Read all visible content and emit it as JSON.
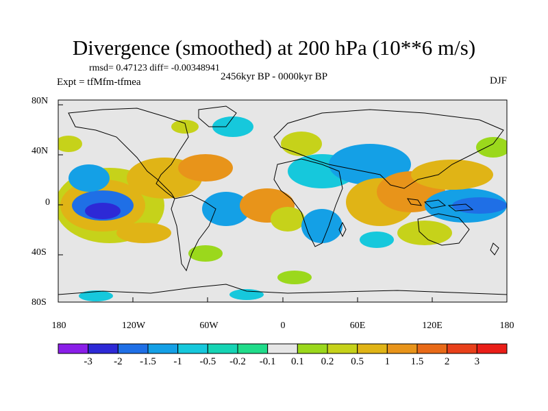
{
  "title": "Divergence (smoothed) at 200 hPa (10**6 m/s)",
  "stats": "rmsd= 0.47123 diff= -0.00348941",
  "period": "2456kyr BP - 0000kyr BP",
  "experiment": "Expt = tfMfm-tfmea",
  "season": "DJF",
  "lat_labels": [
    "80N",
    "40N",
    "0",
    "40S",
    "80S"
  ],
  "lon_labels": [
    "180",
    "120W",
    "60W",
    "0",
    "60E",
    "120E",
    "180"
  ],
  "colorbar": {
    "labels": [
      "-3",
      "-2",
      "-1.5",
      "-1",
      "-0.5",
      "-0.2",
      "-0.1",
      "0.1",
      "0.2",
      "0.5",
      "1",
      "1.5",
      "2",
      "3"
    ],
    "colors": [
      "#8a1ee8",
      "#2d29d6",
      "#1f6fe6",
      "#14a0e6",
      "#16c8dc",
      "#15d4b4",
      "#20dc8a",
      "#e6e6e6",
      "#9bd81c",
      "#c6d21a",
      "#e0b416",
      "#e8941a",
      "#e86a18",
      "#e8401a",
      "#ea1e18"
    ]
  }
}
